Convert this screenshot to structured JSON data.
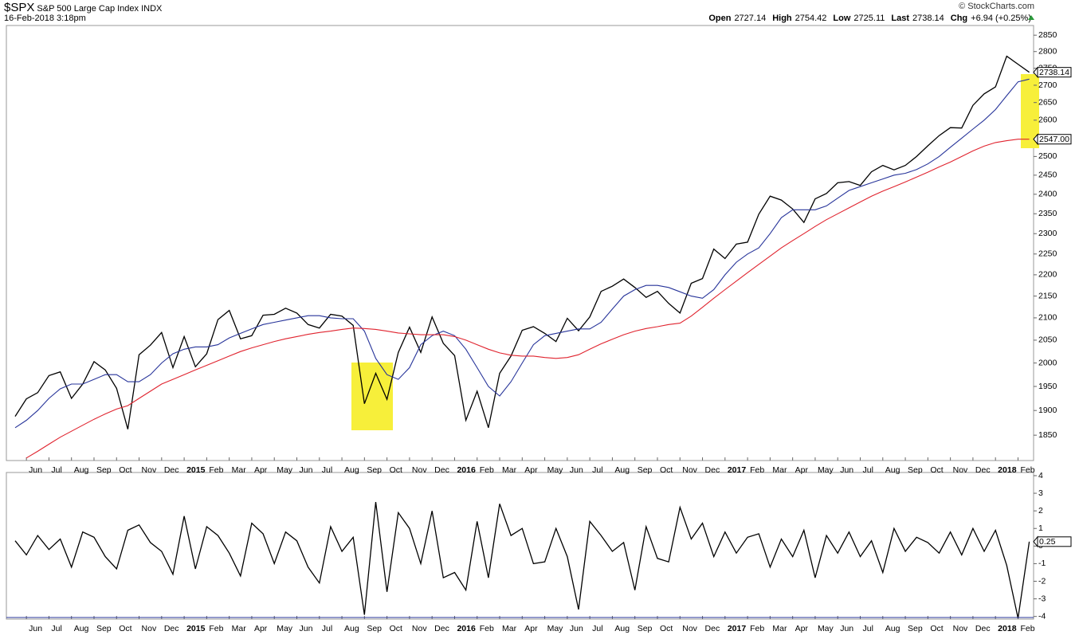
{
  "header": {
    "symbol": "$SPX",
    "name": "S&P 500 Large Cap Index",
    "exchange": "INDX",
    "timestamp": "16-Feb-2018 3:18pm",
    "copyright": "© StockCharts.com",
    "quote": [
      {
        "label": "Open",
        "value": "2727.14"
      },
      {
        "label": "High",
        "value": "2754.42"
      },
      {
        "label": "Low",
        "value": "2725.11"
      },
      {
        "label": "Last",
        "value": "2738.14"
      },
      {
        "label": "Chg",
        "value": "+6.94 (+0.25%)"
      }
    ]
  },
  "chart_data": [
    {
      "type": "line",
      "log_scale": true,
      "categories": [
        null,
        "Jun",
        null,
        "Jul",
        null,
        "Aug",
        null,
        "Sep",
        null,
        "Oct",
        null,
        "Nov",
        null,
        "Dec",
        null,
        "2015",
        null,
        "Feb",
        null,
        "Mar",
        null,
        "Apr",
        null,
        "May",
        null,
        "Jun",
        null,
        "Jul",
        null,
        "Aug",
        null,
        "Sep",
        null,
        "Oct",
        null,
        "Nov",
        null,
        "Dec",
        null,
        "2016",
        null,
        "Feb",
        null,
        "Mar",
        null,
        "Apr",
        null,
        "May",
        null,
        "Jun",
        null,
        "Jul",
        null,
        "Aug",
        null,
        "Sep",
        null,
        "Oct",
        null,
        "Nov",
        null,
        "Dec",
        null,
        "2017",
        null,
        "Feb",
        null,
        "Mar",
        null,
        "Apr",
        null,
        "May",
        null,
        "Jun",
        null,
        "Jul",
        null,
        "Aug",
        null,
        "Sep",
        null,
        "Oct",
        null,
        "Nov",
        null,
        "Dec",
        null,
        "2018",
        null,
        "Feb",
        null
      ],
      "series": [
        {
          "color": "#000000",
          "values": [
            1888,
            1924,
            1937,
            1973,
            1981,
            1925,
            1955,
            2003,
            1985,
            1946,
            1862,
            2018,
            2039,
            2067,
            1990,
            2058,
            1992,
            2020,
            2096,
            2117,
            2053,
            2060,
            2106,
            2108,
            2122,
            2111,
            2085,
            2077,
            2108,
            2104,
            2083,
            1914,
            1978,
            1923,
            2023,
            2079,
            2023,
            2102,
            2043,
            2016,
            1880,
            1940,
            1865,
            1978,
            2015,
            2072,
            2080,
            2065,
            2047,
            2099,
            2071,
            2102,
            2161,
            2173,
            2190,
            2170,
            2147,
            2161,
            2133,
            2111,
            2180,
            2191,
            2262,
            2239,
            2274,
            2279,
            2349,
            2395,
            2385,
            2362,
            2328,
            2388,
            2402,
            2430,
            2433,
            2423,
            2459,
            2476,
            2464,
            2476,
            2500,
            2529,
            2557,
            2579,
            2578,
            2642,
            2675,
            2695,
            2786,
            2762,
            2738.14
          ]
        },
        {
          "color": "#27349a",
          "values": [
            1865,
            1880,
            1900,
            1925,
            1945,
            1955,
            1955,
            1965,
            1975,
            1975,
            1960,
            1960,
            1975,
            2000,
            2020,
            2030,
            2035,
            2035,
            2040,
            2055,
            2065,
            2075,
            2085,
            2090,
            2095,
            2100,
            2105,
            2105,
            2100,
            2098,
            2098,
            2070,
            2010,
            1975,
            1965,
            1990,
            2040,
            2060,
            2070,
            2060,
            2030,
            1990,
            1950,
            1930,
            1960,
            2000,
            2040,
            2060,
            2065,
            2070,
            2075,
            2075,
            2090,
            2120,
            2150,
            2165,
            2175,
            2175,
            2170,
            2160,
            2150,
            2145,
            2165,
            2200,
            2230,
            2250,
            2265,
            2300,
            2340,
            2360,
            2360,
            2360,
            2370,
            2390,
            2410,
            2420,
            2430,
            2440,
            2450,
            2455,
            2465,
            2480,
            2500,
            2525,
            2550,
            2575,
            2600,
            2630,
            2670,
            2710,
            2718
          ]
        },
        {
          "color": "#e0232e",
          "values": [
            null,
            1805,
            1818,
            1832,
            1846,
            1858,
            1870,
            1882,
            1893,
            1903,
            1910,
            1925,
            1940,
            1955,
            1965,
            1975,
            1985,
            1995,
            2005,
            2015,
            2025,
            2033,
            2040,
            2047,
            2053,
            2058,
            2063,
            2067,
            2070,
            2074,
            2077,
            2076,
            2074,
            2070,
            2066,
            2064,
            2062,
            2062,
            2062,
            2058,
            2050,
            2040,
            2030,
            2022,
            2017,
            2015,
            2015,
            2012,
            2010,
            2012,
            2018,
            2030,
            2042,
            2052,
            2062,
            2070,
            2076,
            2080,
            2085,
            2088,
            2104,
            2124,
            2145,
            2165,
            2185,
            2205,
            2225,
            2245,
            2265,
            2283,
            2300,
            2318,
            2335,
            2350,
            2365,
            2380,
            2395,
            2408,
            2420,
            2432,
            2445,
            2458,
            2472,
            2485,
            2500,
            2515,
            2528,
            2538,
            2543,
            2547,
            2547
          ]
        }
      ],
      "ylim": [
        1800,
        2880
      ],
      "yticks": [
        1850,
        1900,
        1950,
        2000,
        2050,
        2100,
        2150,
        2200,
        2250,
        2300,
        2350,
        2400,
        2450,
        2500,
        2550,
        2600,
        2650,
        2700,
        2750,
        2800,
        2850
      ],
      "annotations": [
        {
          "value": 2738.14,
          "label": "2738.14"
        },
        {
          "value": 2547,
          "label": "2547.00"
        }
      ]
    },
    {
      "type": "line",
      "categories": [
        null,
        "Jun",
        null,
        "Jul",
        null,
        "Aug",
        null,
        "Sep",
        null,
        "Oct",
        null,
        "Nov",
        null,
        "Dec",
        null,
        "2015",
        null,
        "Feb",
        null,
        "Mar",
        null,
        "Apr",
        null,
        "May",
        null,
        "Jun",
        null,
        "Jul",
        null,
        "Aug",
        null,
        "Sep",
        null,
        "Oct",
        null,
        "Nov",
        null,
        "Dec",
        null,
        "2016",
        null,
        "Feb",
        null,
        "Mar",
        null,
        "Apr",
        null,
        "May",
        null,
        "Jun",
        null,
        "Jul",
        null,
        "Aug",
        null,
        "Sep",
        null,
        "Oct",
        null,
        "Nov",
        null,
        "Dec",
        null,
        "2017",
        null,
        "Feb",
        null,
        "Mar",
        null,
        "Apr",
        null,
        "May",
        null,
        "Jun",
        null,
        "Jul",
        null,
        "Aug",
        null,
        "Sep",
        null,
        "Oct",
        null,
        "Nov",
        null,
        "Dec",
        null,
        "2018",
        null,
        "Feb",
        null
      ],
      "series": [
        {
          "color": "#000000",
          "values": [
            0.3,
            -0.5,
            0.6,
            -0.2,
            0.4,
            -1.2,
            0.8,
            0.5,
            -0.6,
            -1.3,
            0.9,
            1.2,
            0.2,
            -0.3,
            -1.6,
            1.7,
            -1.3,
            1.1,
            0.6,
            -0.4,
            -1.7,
            1.3,
            0.7,
            -1.0,
            0.8,
            0.3,
            -1.2,
            -2.1,
            1.1,
            -0.3,
            0.5,
            -3.9,
            2.5,
            -2.6,
            1.9,
            1.0,
            -1.0,
            2.0,
            -1.8,
            -1.5,
            -2.5,
            1.4,
            -1.8,
            2.4,
            0.6,
            1.0,
            -1.0,
            -0.9,
            1.0,
            -0.6,
            -3.6,
            1.4,
            0.6,
            -0.3,
            0.2,
            -2.5,
            1.1,
            -0.7,
            -0.9,
            2.2,
            0.4,
            1.3,
            -0.6,
            0.8,
            -0.4,
            0.5,
            0.7,
            -1.2,
            0.4,
            -0.6,
            0.9,
            -1.8,
            0.6,
            -0.4,
            0.8,
            -0.6,
            0.3,
            -1.5,
            1.0,
            -0.3,
            0.5,
            0.2,
            -0.4,
            0.8,
            -0.5,
            1.0,
            -0.3,
            0.9,
            -1.1,
            -4.1,
            0.25
          ]
        }
      ],
      "ylim": [
        -4.15,
        4.18
      ],
      "yticks": [
        -4,
        -3,
        -2,
        -1,
        0,
        1,
        2,
        3,
        4
      ],
      "annotations": [
        {
          "value": 0.25,
          "label": "0.25"
        }
      ]
    }
  ]
}
